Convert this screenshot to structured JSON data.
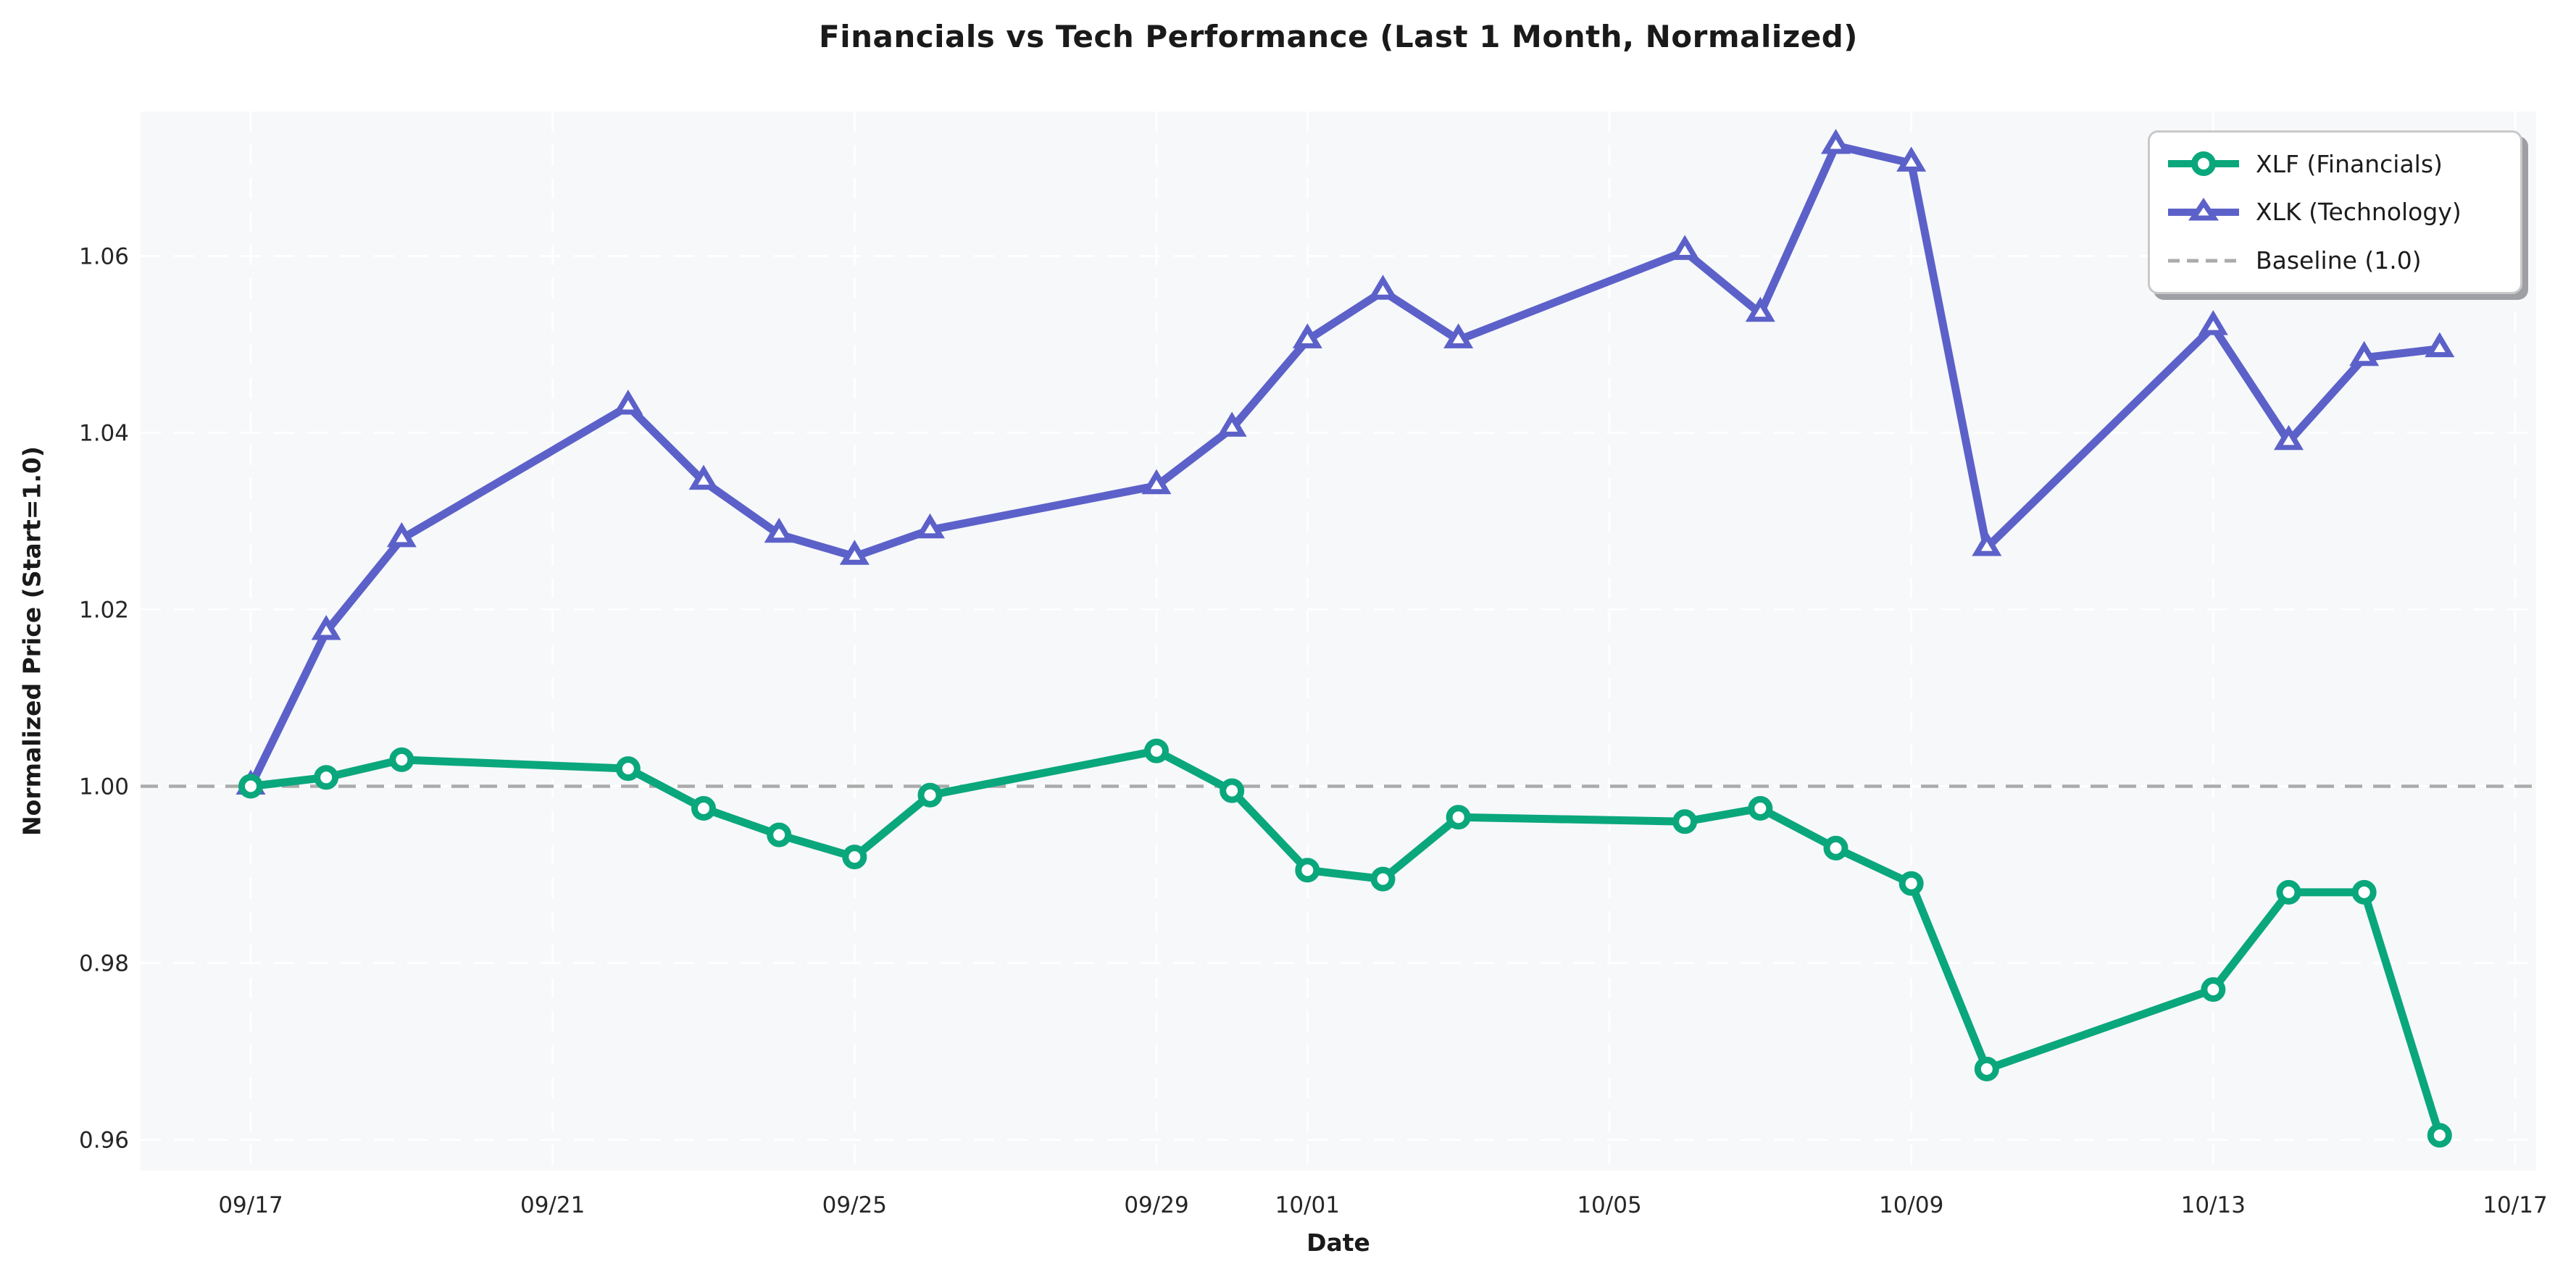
{
  "chart_data": {
    "type": "line",
    "title": "Financials vs Tech Performance (Last 1 Month, Normalized)",
    "xlabel": "Date",
    "ylabel": "Normalized Price (Start=1.0)",
    "grid": true,
    "legend_position": "upper right",
    "plot_bg": "#f6f8fa",
    "x_dates": [
      "09/17",
      "09/18",
      "09/19",
      "09/22",
      "09/23",
      "09/24",
      "09/25",
      "09/26",
      "09/29",
      "09/30",
      "10/01",
      "10/02",
      "10/03",
      "10/06",
      "10/07",
      "10/08",
      "10/09",
      "10/10",
      "10/13",
      "10/14",
      "10/15",
      "10/16"
    ],
    "x_day_offsets": [
      0,
      1,
      2,
      5,
      6,
      7,
      8,
      9,
      12,
      13,
      14,
      15,
      16,
      19,
      20,
      21,
      22,
      23,
      26,
      27,
      28,
      29
    ],
    "series": [
      {
        "name": "XLF (Financials)",
        "color": "#0aa77c",
        "marker": "circle",
        "values": [
          1.0,
          1.001,
          1.003,
          1.002,
          0.9975,
          0.9945,
          0.992,
          0.999,
          1.004,
          0.9995,
          0.9905,
          0.9895,
          0.9965,
          0.996,
          0.9975,
          0.993,
          0.989,
          0.968,
          0.977,
          0.988,
          0.988,
          0.9605
        ]
      },
      {
        "name": "XLK (Technology)",
        "color": "#5c61c9",
        "marker": "triangle",
        "values": [
          1.0,
          1.0175,
          1.028,
          1.043,
          1.0345,
          1.0285,
          1.026,
          1.029,
          1.034,
          1.0405,
          1.0505,
          1.056,
          1.0505,
          1.0605,
          1.0535,
          1.0725,
          1.0705,
          1.027,
          1.052,
          1.039,
          1.0485,
          1.0495
        ]
      }
    ],
    "baseline": {
      "label": "Baseline (1.0)",
      "value": 1.0,
      "color": "#ababab",
      "style": "dashed"
    },
    "x_ticks": [
      {
        "label": "09/17",
        "day": 0
      },
      {
        "label": "09/21",
        "day": 4
      },
      {
        "label": "09/25",
        "day": 8
      },
      {
        "label": "09/29",
        "day": 12
      },
      {
        "label": "10/01",
        "day": 14
      },
      {
        "label": "10/05",
        "day": 18
      },
      {
        "label": "10/09",
        "day": 22
      },
      {
        "label": "10/13",
        "day": 26
      },
      {
        "label": "10/17",
        "day": 30
      }
    ],
    "y_ticks": [
      0.96,
      0.98,
      1.0,
      1.02,
      1.04,
      1.06
    ],
    "ylim": [
      0.9565,
      1.0765
    ],
    "xlim_days": [
      -1.46,
      30.28
    ]
  }
}
